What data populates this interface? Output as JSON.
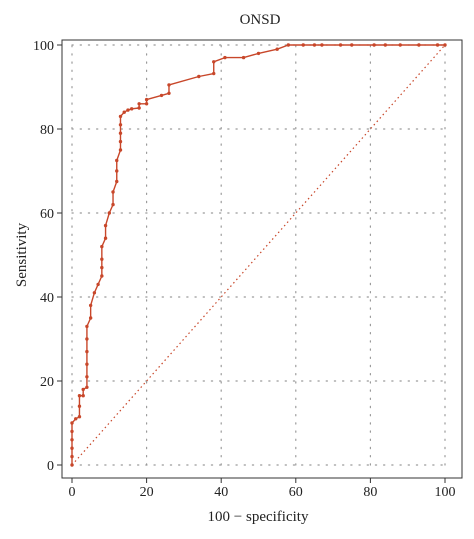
{
  "chart_data": {
    "type": "line",
    "title": "ONSD",
    "xlabel": "100 − specificity",
    "ylabel": "Sensitivity",
    "xlim": [
      0,
      100
    ],
    "ylim": [
      0,
      100
    ],
    "x_ticks": [
      "0",
      "20",
      "40",
      "60",
      "80",
      "100"
    ],
    "y_ticks": [
      "0",
      "20",
      "40",
      "60",
      "80",
      "100"
    ],
    "grid": true,
    "legend": "none",
    "series": [
      {
        "role": "roc-curve",
        "color": "#c8472a",
        "style": "step-line with point markers",
        "points": [
          [
            0,
            0
          ],
          [
            0,
            2
          ],
          [
            0,
            4
          ],
          [
            0,
            6
          ],
          [
            0,
            8
          ],
          [
            0,
            10
          ],
          [
            1,
            11
          ],
          [
            2,
            11.5
          ],
          [
            2,
            14
          ],
          [
            2,
            16.5
          ],
          [
            3,
            16.5
          ],
          [
            3,
            18
          ],
          [
            4,
            18.5
          ],
          [
            4,
            21
          ],
          [
            4,
            24
          ],
          [
            4,
            27
          ],
          [
            4,
            30
          ],
          [
            4,
            33
          ],
          [
            5,
            35
          ],
          [
            5,
            38
          ],
          [
            6,
            41
          ],
          [
            7,
            43
          ],
          [
            8,
            45
          ],
          [
            8,
            47
          ],
          [
            8,
            49
          ],
          [
            8,
            52
          ],
          [
            9,
            54
          ],
          [
            9,
            57
          ],
          [
            10,
            60
          ],
          [
            11,
            62
          ],
          [
            11,
            65
          ],
          [
            12,
            67.5
          ],
          [
            12,
            70
          ],
          [
            12,
            72.5
          ],
          [
            13,
            75
          ],
          [
            13,
            77
          ],
          [
            13,
            79
          ],
          [
            13,
            81
          ],
          [
            13,
            83
          ],
          [
            14,
            84
          ],
          [
            15,
            84.5
          ],
          [
            16,
            84.8
          ],
          [
            18,
            85
          ],
          [
            18,
            86
          ],
          [
            20,
            86
          ],
          [
            20,
            87
          ],
          [
            24,
            88
          ],
          [
            26,
            88.5
          ],
          [
            26,
            90.5
          ],
          [
            34,
            92.5
          ],
          [
            38,
            93.2
          ],
          [
            38,
            96
          ],
          [
            41,
            97
          ],
          [
            46,
            97
          ],
          [
            50,
            98
          ],
          [
            55,
            99
          ],
          [
            58,
            100
          ],
          [
            62,
            100
          ],
          [
            65,
            100
          ],
          [
            67,
            100
          ],
          [
            72,
            100
          ],
          [
            75,
            100
          ],
          [
            81,
            100
          ],
          [
            84,
            100
          ],
          [
            88,
            100
          ],
          [
            93,
            100
          ],
          [
            98,
            100
          ],
          [
            100,
            100
          ]
        ]
      },
      {
        "role": "reference-diagonal",
        "color": "#c8472a",
        "style": "dotted",
        "points": [
          [
            0,
            0
          ],
          [
            100,
            100
          ]
        ]
      }
    ]
  }
}
